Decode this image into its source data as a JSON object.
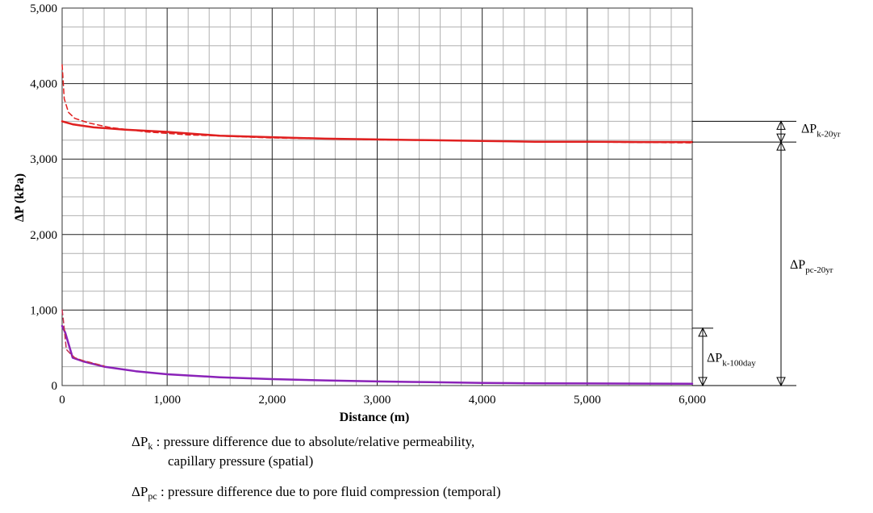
{
  "chart_data": {
    "type": "line",
    "title": "",
    "xlabel": "Distance (m)",
    "ylabel": "ΔP (kPa)",
    "xlim": [
      0,
      6000
    ],
    "ylim": [
      0,
      5000
    ],
    "grid": true,
    "x_ticks": [
      "0",
      "1,000",
      "2,000",
      "3,000",
      "4,000",
      "5,000",
      "6,000"
    ],
    "y_ticks": [
      "0",
      "1,000",
      "2,000",
      "3,000",
      "4,000",
      "5,000"
    ],
    "series": [
      {
        "name": "20yr solid",
        "color": "#e02020",
        "dash": false,
        "x": [
          0,
          100,
          300,
          600,
          1000,
          1500,
          2000,
          2500,
          3000,
          3500,
          4000,
          4500,
          5000,
          5500,
          6000
        ],
        "y": [
          3500,
          3460,
          3420,
          3390,
          3360,
          3310,
          3290,
          3270,
          3260,
          3250,
          3240,
          3230,
          3230,
          3225,
          3225
        ]
      },
      {
        "name": "20yr dashed",
        "color": "#e02020",
        "dash": true,
        "x": [
          0,
          20,
          60,
          120,
          250,
          450,
          800,
          1200,
          2000,
          3000,
          4000,
          5000,
          6000
        ],
        "y": [
          4250,
          3800,
          3620,
          3540,
          3480,
          3420,
          3360,
          3320,
          3280,
          3255,
          3240,
          3225,
          3215
        ]
      },
      {
        "name": "100day solid",
        "color": "#8a22b8",
        "dash": false,
        "x": [
          0,
          30,
          100,
          200,
          400,
          700,
          1000,
          1500,
          2000,
          2500,
          3000,
          3500,
          4000,
          4500,
          5000,
          6000
        ],
        "y": [
          790,
          700,
          370,
          320,
          250,
          190,
          150,
          110,
          85,
          68,
          55,
          45,
          35,
          30,
          28,
          25
        ]
      },
      {
        "name": "100day dashed",
        "color": "#c03050",
        "dash": true,
        "x": [
          0,
          15,
          40,
          80,
          120,
          200,
          400
        ],
        "y": [
          1000,
          820,
          480,
          420,
          370,
          330,
          260
        ]
      }
    ],
    "annotations": [
      {
        "symbol": "ΔP",
        "sub": "k-20yr",
        "from": 3500,
        "to": 3225
      },
      {
        "symbol": "ΔP",
        "sub": "pc-20yr",
        "from": 3225,
        "to": 0
      },
      {
        "symbol": "ΔP",
        "sub": "k-100day",
        "from": 760,
        "to": 0
      }
    ]
  },
  "legend": {
    "line1_symbol": "ΔP",
    "line1_sub": "k",
    "line1_text": " : pressure difference due to absolute/relative permeability,",
    "line1b_text": "capillary pressure (spatial)",
    "line2_symbol": "ΔP",
    "line2_sub": "pc",
    "line2_text": " : pressure difference due to pore fluid compression (temporal)"
  }
}
